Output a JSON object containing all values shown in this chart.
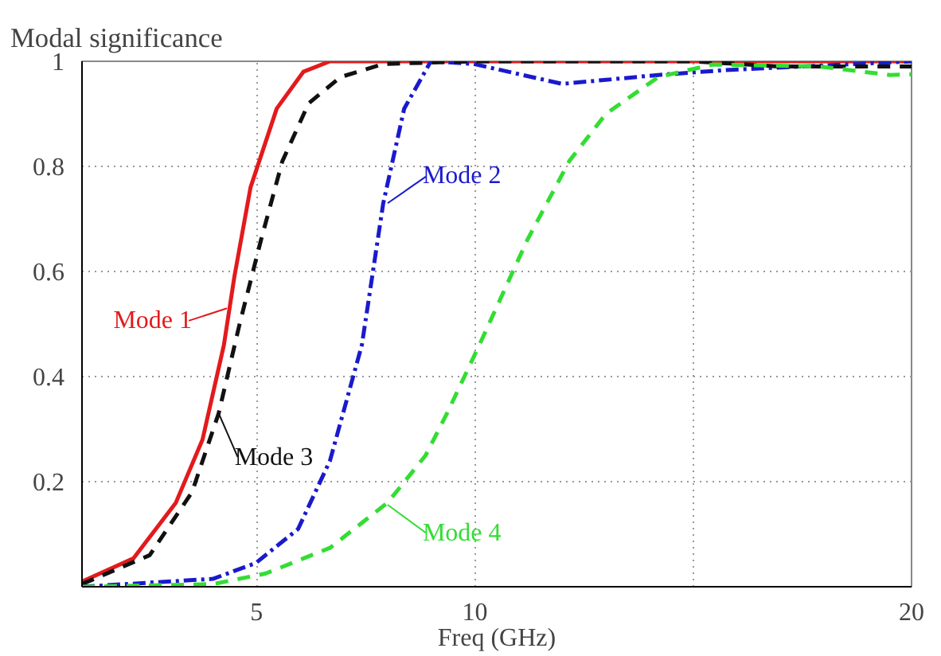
{
  "chart_data": {
    "type": "line",
    "title": "Modal significance",
    "xlabel": "Freq (GHz)",
    "xlim": [
      1,
      20
    ],
    "ylim": [
      0,
      1
    ],
    "xticks": [
      5,
      10,
      {
        "value": 15,
        "label": null
      },
      20
    ],
    "yticks": [
      0.2,
      0.4,
      0.6,
      0.8,
      1
    ],
    "grid": true,
    "marker": "none",
    "series": [
      {
        "color": "#e31a1c",
        "line_style": "solid",
        "x": [
          1,
          2.18,
          3.15,
          3.76,
          4.25,
          4.49,
          4.86,
          5.46,
          6.07,
          6.68,
          10,
          15,
          20
        ],
        "values": [
          0.01,
          0.054,
          0.16,
          0.28,
          0.46,
          0.59,
          0.76,
          0.91,
          0.98,
          1.0,
          1.0,
          1.0,
          1.0
        ]
      },
      {
        "color": "#1a1acc",
        "line_style": "dashdot",
        "x": [
          1,
          4.0,
          4.98,
          5.95,
          6.68,
          7.41,
          7.9,
          8.38,
          8.99,
          9.97,
          12.0,
          14.2,
          15.7,
          20
        ],
        "values": [
          0,
          0.015,
          0.045,
          0.11,
          0.24,
          0.46,
          0.73,
          0.91,
          1.0,
          0.995,
          0.957,
          0.974,
          0.983,
          1.0
        ]
      },
      {
        "color": "#111111",
        "line_style": "dashed",
        "x": [
          1,
          2.55,
          3.52,
          4.13,
          4.61,
          5.1,
          5.59,
          6.19,
          6.92,
          7.9,
          10,
          15,
          17,
          20
        ],
        "values": [
          0.005,
          0.06,
          0.18,
          0.33,
          0.5,
          0.66,
          0.81,
          0.92,
          0.97,
          0.995,
          1.0,
          1.0,
          0.99,
          0.99
        ]
      },
      {
        "color": "#33dd33",
        "line_style": "dashed",
        "x": [
          1,
          4.0,
          5.2,
          6.68,
          8.0,
          8.87,
          9.36,
          10.1,
          11.2,
          12.16,
          13.0,
          14.2,
          15.45,
          17.9,
          19.5,
          20
        ],
        "values": [
          0,
          0.005,
          0.025,
          0.074,
          0.16,
          0.25,
          0.33,
          0.46,
          0.66,
          0.81,
          0.9,
          0.97,
          0.994,
          0.99,
          0.974,
          0.975
        ]
      }
    ],
    "annotations": [
      {
        "text": "Mode 1",
        "x": 4.32,
        "y": 0.53
      },
      {
        "text": "Mode 2",
        "x": 8.0,
        "y": 0.73
      },
      {
        "text": "Mode 3",
        "x": 4.13,
        "y": 0.33
      },
      {
        "text": "Mode 4",
        "x": 8.0,
        "y": 0.156
      }
    ]
  }
}
